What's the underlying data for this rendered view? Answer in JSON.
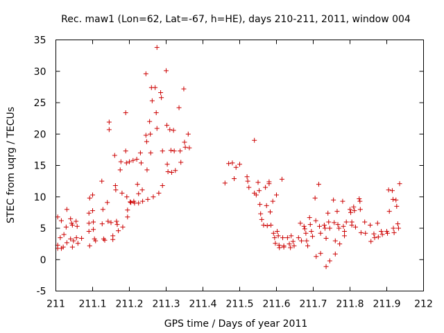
{
  "chart_data": {
    "type": "scatter",
    "title": "Rec. maw1 (Lon=62, Lat=-67, h=HE), days 210-211, 2011, window 004",
    "xlabel": "GPS time / Days of year 2011",
    "ylabel": "STEC from uqrg / TECUs",
    "xlim": [
      211,
      212
    ],
    "ylim": [
      -5,
      35
    ],
    "x_ticks": [
      211,
      211.1,
      211.2,
      211.3,
      211.4,
      211.5,
      211.6,
      211.7,
      211.8,
      211.9,
      212
    ],
    "x_tick_labels": [
      "211",
      "211.1",
      "211.2",
      "211.3",
      "211.4",
      "211.5",
      "211.6",
      "211.7",
      "211.8",
      "211.9",
      "212"
    ],
    "y_ticks": [
      -5,
      0,
      5,
      10,
      15,
      20,
      25,
      30,
      35
    ],
    "y_tick_labels": [
      "-5",
      "0",
      "5",
      "10",
      "15",
      "20",
      "25",
      "30",
      "35"
    ],
    "grid": false,
    "marker": "+",
    "color": "#cc0000",
    "series": [
      {
        "points": [
          [
            211.005,
            6.8
          ],
          [
            211.005,
            2.3
          ],
          [
            211.005,
            1.8
          ],
          [
            211.012,
            3.5
          ],
          [
            211.015,
            6.2
          ],
          [
            211.015,
            1.8
          ],
          [
            211.02,
            2.0
          ],
          [
            211.022,
            4.0
          ],
          [
            211.03,
            8.0
          ],
          [
            211.028,
            5.2
          ],
          [
            211.03,
            2.7
          ],
          [
            211.04,
            6.5
          ],
          [
            211.043,
            5.8
          ],
          [
            211.045,
            5.5
          ],
          [
            211.04,
            3.3
          ],
          [
            211.048,
            3.0
          ],
          [
            211.045,
            2.0
          ],
          [
            211.055,
            6.1
          ],
          [
            211.058,
            5.3
          ],
          [
            211.056,
            3.5
          ],
          [
            211.06,
            2.6
          ],
          [
            211.07,
            3.4
          ],
          [
            211.09,
            7.4
          ],
          [
            211.09,
            4.5
          ],
          [
            211.09,
            5.8
          ],
          [
            211.092,
            2.2
          ],
          [
            211.092,
            9.8
          ],
          [
            211.1,
            10.3
          ],
          [
            211.1,
            7.8
          ],
          [
            211.102,
            6.0
          ],
          [
            211.102,
            4.8
          ],
          [
            211.105,
            3.3
          ],
          [
            211.108,
            3.0
          ],
          [
            211.125,
            12.5
          ],
          [
            211.128,
            8.0
          ],
          [
            211.126,
            5.7
          ],
          [
            211.13,
            3.3
          ],
          [
            211.133,
            3.1
          ],
          [
            211.14,
            9.1
          ],
          [
            211.142,
            6.1
          ],
          [
            211.145,
            21.9
          ],
          [
            211.145,
            20.7
          ],
          [
            211.15,
            5.9
          ],
          [
            211.155,
            3.8
          ],
          [
            211.155,
            3.2
          ],
          [
            211.16,
            16.6
          ],
          [
            211.162,
            11.8
          ],
          [
            211.163,
            11.1
          ],
          [
            211.165,
            6.1
          ],
          [
            211.167,
            5.6
          ],
          [
            211.17,
            4.6
          ],
          [
            211.175,
            14.3
          ],
          [
            211.177,
            15.6
          ],
          [
            211.18,
            10.6
          ],
          [
            211.182,
            5.2
          ],
          [
            211.19,
            23.4
          ],
          [
            211.19,
            17.3
          ],
          [
            211.192,
            15.4
          ],
          [
            211.193,
            10.0
          ],
          [
            211.195,
            7.9
          ],
          [
            211.195,
            6.8
          ],
          [
            211.2,
            15.6
          ],
          [
            211.202,
            9.2
          ],
          [
            211.204,
            9.1
          ],
          [
            211.21,
            15.8
          ],
          [
            211.212,
            9.3
          ],
          [
            211.214,
            9.0
          ],
          [
            211.22,
            16.0
          ],
          [
            211.222,
            12.0
          ],
          [
            211.225,
            10.5
          ],
          [
            211.225,
            9.0
          ],
          [
            211.23,
            17.0
          ],
          [
            211.232,
            15.4
          ],
          [
            211.235,
            11.1
          ],
          [
            211.236,
            9.3
          ],
          [
            211.245,
            29.6
          ],
          [
            211.245,
            19.8
          ],
          [
            211.247,
            18.8
          ],
          [
            211.248,
            14.3
          ],
          [
            211.25,
            9.6
          ],
          [
            211.255,
            22.0
          ],
          [
            211.257,
            20.0
          ],
          [
            211.258,
            17.0
          ],
          [
            211.26,
            27.4
          ],
          [
            211.262,
            25.3
          ],
          [
            211.265,
            10.0
          ],
          [
            211.27,
            27.4
          ],
          [
            211.273,
            23.4
          ],
          [
            211.275,
            20.9
          ],
          [
            211.275,
            33.8
          ],
          [
            211.28,
            10.6
          ],
          [
            211.285,
            26.6
          ],
          [
            211.287,
            25.8
          ],
          [
            211.29,
            17.3
          ],
          [
            211.29,
            11.8
          ],
          [
            211.3,
            30.1
          ],
          [
            211.302,
            21.4
          ],
          [
            211.303,
            15.2
          ],
          [
            211.305,
            14.0
          ],
          [
            211.31,
            20.7
          ],
          [
            211.313,
            17.4
          ],
          [
            211.315,
            13.9
          ],
          [
            211.32,
            20.6
          ],
          [
            211.322,
            17.3
          ],
          [
            211.325,
            14.2
          ],
          [
            211.335,
            24.2
          ],
          [
            211.338,
            17.3
          ],
          [
            211.34,
            15.5
          ],
          [
            211.348,
            27.2
          ],
          [
            211.35,
            18.7
          ],
          [
            211.352,
            17.9
          ],
          [
            211.36,
            20.0
          ],
          [
            211.363,
            17.8
          ],
          [
            211.46,
            12.2
          ],
          [
            211.47,
            15.3
          ],
          [
            211.48,
            15.4
          ],
          [
            211.485,
            12.9
          ],
          [
            211.49,
            14.7
          ],
          [
            211.5,
            15.2
          ],
          [
            211.52,
            13.2
          ],
          [
            211.522,
            12.5
          ],
          [
            211.525,
            11.5
          ],
          [
            211.54,
            19.0
          ],
          [
            211.54,
            10.6
          ],
          [
            211.545,
            10.3
          ],
          [
            211.55,
            12.3
          ],
          [
            211.553,
            11.0
          ],
          [
            211.555,
            8.8
          ],
          [
            211.557,
            7.3
          ],
          [
            211.56,
            6.4
          ],
          [
            211.565,
            5.5
          ],
          [
            211.57,
            11.5
          ],
          [
            211.573,
            8.6
          ],
          [
            211.575,
            5.4
          ],
          [
            211.58,
            12.4
          ],
          [
            211.58,
            12.1
          ],
          [
            211.583,
            7.6
          ],
          [
            211.585,
            5.5
          ],
          [
            211.59,
            9.3
          ],
          [
            211.592,
            4.2
          ],
          [
            211.595,
            3.5
          ],
          [
            211.597,
            2.6
          ],
          [
            211.6,
            10.3
          ],
          [
            211.602,
            4.5
          ],
          [
            211.605,
            3.8
          ],
          [
            211.607,
            2.3
          ],
          [
            211.608,
            1.9
          ],
          [
            211.615,
            12.8
          ],
          [
            211.617,
            3.5
          ],
          [
            211.62,
            2.2
          ],
          [
            211.62,
            2.0
          ],
          [
            211.63,
            3.5
          ],
          [
            211.635,
            2.5
          ],
          [
            211.638,
            1.9
          ],
          [
            211.64,
            3.8
          ],
          [
            211.645,
            2.9
          ],
          [
            211.648,
            2.2
          ],
          [
            211.66,
            3.5
          ],
          [
            211.665,
            5.8
          ],
          [
            211.668,
            3.0
          ],
          [
            211.675,
            5.3
          ],
          [
            211.677,
            4.9
          ],
          [
            211.68,
            4.2
          ],
          [
            211.682,
            3.0
          ],
          [
            211.685,
            2.2
          ],
          [
            211.69,
            6.7
          ],
          [
            211.692,
            5.6
          ],
          [
            211.695,
            4.5
          ],
          [
            211.698,
            3.7
          ],
          [
            211.705,
            9.8
          ],
          [
            211.707,
            6.2
          ],
          [
            211.708,
            0.5
          ],
          [
            211.715,
            12.0
          ],
          [
            211.717,
            5.3
          ],
          [
            211.72,
            4.2
          ],
          [
            211.72,
            1.0
          ],
          [
            211.73,
            5.5
          ],
          [
            211.732,
            5.0
          ],
          [
            211.735,
            3.4
          ],
          [
            211.735,
            -1.1
          ],
          [
            211.74,
            7.4
          ],
          [
            211.742,
            6.0
          ],
          [
            211.745,
            5.0
          ],
          [
            211.745,
            -0.2
          ],
          [
            211.755,
            9.5
          ],
          [
            211.757,
            5.9
          ],
          [
            211.76,
            3.0
          ],
          [
            211.76,
            0.9
          ],
          [
            211.765,
            7.7
          ],
          [
            211.767,
            5.6
          ],
          [
            211.77,
            5.0
          ],
          [
            211.772,
            2.5
          ],
          [
            211.78,
            9.3
          ],
          [
            211.782,
            5.3
          ],
          [
            211.785,
            4.5
          ],
          [
            211.785,
            3.8
          ],
          [
            211.79,
            6.0
          ],
          [
            211.8,
            8.0
          ],
          [
            211.802,
            7.5
          ],
          [
            211.805,
            6.0
          ],
          [
            211.805,
            5.5
          ],
          [
            211.81,
            8.4
          ],
          [
            211.812,
            7.8
          ],
          [
            211.815,
            5.2
          ],
          [
            211.825,
            9.7
          ],
          [
            211.827,
            9.3
          ],
          [
            211.828,
            8.0
          ],
          [
            211.83,
            4.3
          ],
          [
            211.84,
            6.0
          ],
          [
            211.842,
            4.2
          ],
          [
            211.855,
            5.5
          ],
          [
            211.857,
            2.9
          ],
          [
            211.865,
            4.1
          ],
          [
            211.867,
            3.5
          ],
          [
            211.875,
            5.8
          ],
          [
            211.877,
            3.6
          ],
          [
            211.885,
            4.5
          ],
          [
            211.888,
            4.0
          ],
          [
            211.9,
            4.5
          ],
          [
            211.902,
            4.2
          ],
          [
            211.905,
            11.1
          ],
          [
            211.907,
            7.7
          ],
          [
            211.915,
            11.0
          ],
          [
            211.917,
            9.6
          ],
          [
            211.918,
            5.0
          ],
          [
            211.92,
            4.3
          ],
          [
            211.925,
            9.5
          ],
          [
            211.927,
            8.5
          ],
          [
            211.93,
            5.7
          ],
          [
            211.932,
            5.0
          ],
          [
            211.935,
            12.1
          ]
        ]
      }
    ]
  }
}
